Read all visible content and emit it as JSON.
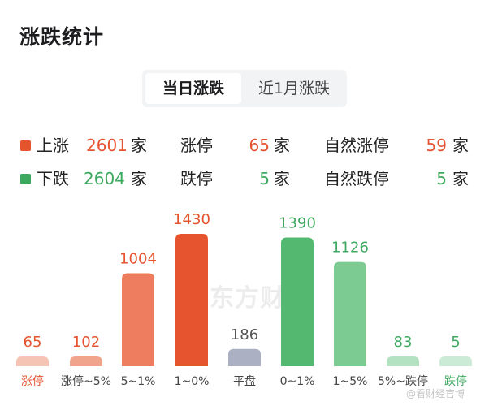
{
  "title": "涨跌统计",
  "tabs": [
    {
      "label": "当日涨跌",
      "active": true
    },
    {
      "label": "近1月涨跌",
      "active": false
    }
  ],
  "summary": {
    "up": {
      "label": "上涨",
      "count": "2601",
      "unit": "家",
      "color": "#e5532f"
    },
    "down": {
      "label": "下跌",
      "count": "2604",
      "unit": "家",
      "color": "#3da85f"
    },
    "limit_up": {
      "label": "涨停",
      "count": "65",
      "unit": "家"
    },
    "limit_down": {
      "label": "跌停",
      "count": "5",
      "unit": "家"
    },
    "natural_limit_up": {
      "label": "自然涨停",
      "count": "59",
      "unit": "家"
    },
    "natural_limit_down": {
      "label": "自然跌停",
      "count": "5",
      "unit": "家"
    }
  },
  "watermark": "东方财",
  "footer_watermark": "@看财经官博",
  "chart_data": {
    "type": "bar",
    "categories": [
      "涨停",
      "涨停~5%",
      "5~1%",
      "1~0%",
      "平盘",
      "0~1%",
      "1~5%",
      "5%~跌停",
      "跌停"
    ],
    "values": [
      65,
      102,
      1004,
      1430,
      186,
      1390,
      1126,
      83,
      5
    ],
    "colors": [
      "#f6c4b4",
      "#f1a48c",
      "#ee7c5e",
      "#e5532f",
      "#abb0c3",
      "#54b871",
      "#7ccb93",
      "#b2e2c1",
      "#ccebd7"
    ],
    "value_colors": [
      "#e5532f",
      "#e5532f",
      "#e5532f",
      "#e5532f",
      "#555555",
      "#3da85f",
      "#3da85f",
      "#3da85f",
      "#3da85f"
    ],
    "label_colors": [
      "#e5532f",
      "#444444",
      "#444444",
      "#444444",
      "#444444",
      "#444444",
      "#444444",
      "#444444",
      "#3da85f"
    ],
    "title": "",
    "xlabel": "",
    "ylabel": "",
    "ylim": [
      0,
      1430
    ]
  }
}
